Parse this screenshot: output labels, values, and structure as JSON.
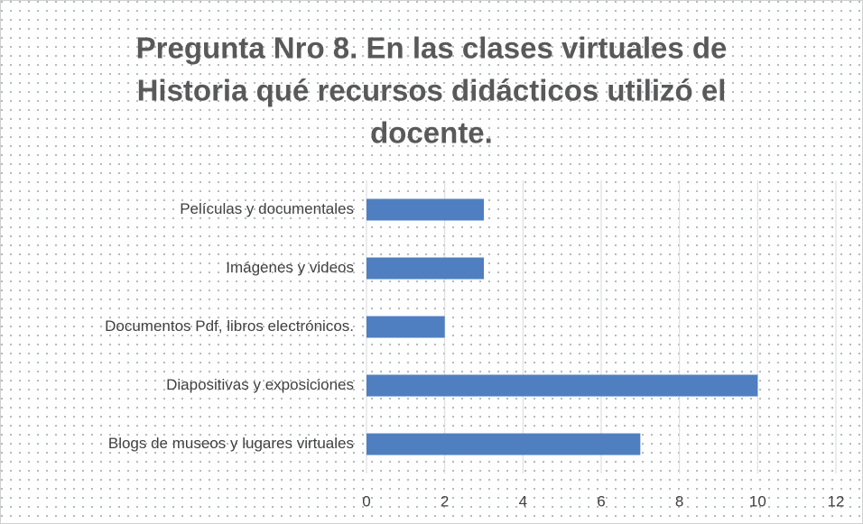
{
  "chart_data": {
    "type": "barh",
    "title": [
      "Pregunta Nro 8. En las  clases virtuales de",
      "Historia qué recursos didácticos utilizó el",
      "docente."
    ],
    "categories": [
      "Películas y documentales",
      "Imágenes y videos",
      "Documentos Pdf, libros electrónicos.",
      "Diapositivas y exposiciones",
      "Blogs de museos y lugares virtuales"
    ],
    "values": [
      3,
      3,
      2,
      10,
      7
    ],
    "color": "#4f7fc0",
    "xlim": [
      0,
      12
    ],
    "xticks": [
      0,
      2,
      4,
      6,
      8,
      10,
      12
    ],
    "grid": true
  }
}
